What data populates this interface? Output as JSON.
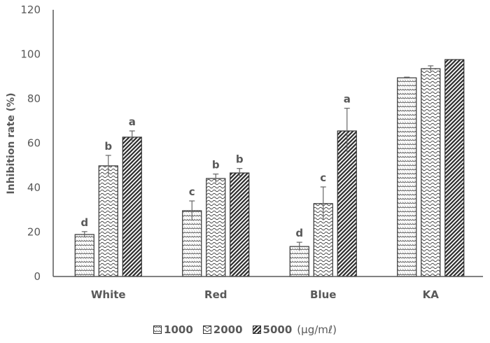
{
  "chart_data": {
    "type": "bar",
    "title": "",
    "xlabel": "",
    "ylabel": "Inhibition rate (%)",
    "ylim": [
      0,
      120
    ],
    "yticks": [
      0,
      20,
      40,
      60,
      80,
      100,
      120
    ],
    "grid": false,
    "legend_position": "bottom",
    "categories": [
      "White",
      "Red",
      "Blue",
      "KA"
    ],
    "series": [
      {
        "name": "1000",
        "values": [
          18.9,
          29.6,
          13.5,
          89.4
        ],
        "errors": [
          1.3,
          4.4,
          1.9,
          0.3
        ],
        "letters": [
          "d",
          "c",
          "d",
          ""
        ],
        "pattern": "light-dotted-wave"
      },
      {
        "name": "2000",
        "values": [
          49.8,
          44.1,
          32.8,
          93.5
        ],
        "errors": [
          4.7,
          2.0,
          7.5,
          1.3
        ],
        "letters": [
          "b",
          "b",
          "c",
          ""
        ],
        "pattern": "wave"
      },
      {
        "name": "5000",
        "values": [
          62.7,
          46.6,
          65.5,
          97.6
        ],
        "errors": [
          2.8,
          2.0,
          10.2,
          0
        ],
        "letters": [
          "a",
          "b",
          "a",
          ""
        ],
        "pattern": "dense-diagonal"
      }
    ],
    "legend_unit": "(μg/mℓ)"
  },
  "legend": {
    "items": [
      "1000",
      "2000",
      "5000"
    ],
    "unit": "(μg/mℓ)"
  }
}
